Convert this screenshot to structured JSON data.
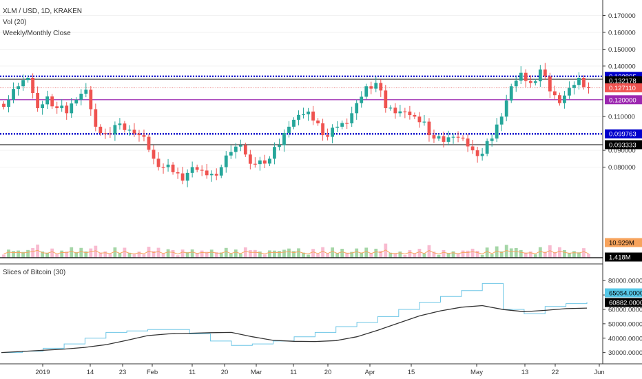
{
  "header": {
    "symbol_line": "XLM / USD, 1D, KRAKEN",
    "vol_label": "Vol (20)",
    "close_label": "Weekly/Monthly Close",
    "pane2_label": "Slices of Bitcoin (30)"
  },
  "colors": {
    "up": "#26a69a",
    "down": "#ef5350",
    "vol_up": "#a5d6a7",
    "vol_down": "#f8bbd0",
    "vol_ma": "#f7a35c",
    "blue_dotted": "#0000cc",
    "purple": "#9c27b0",
    "red_dotted": "#e57373",
    "bitcoin_line": "#6ec6e6",
    "bitcoin_ma": "#333333"
  },
  "chart_data": [
    {
      "type": "candlestick",
      "title": "XLM / USD, 1D, KRAKEN",
      "x_tick_labels": [
        "2019",
        "14",
        "23",
        "Feb",
        "11",
        "20",
        "Mar",
        "11",
        "20",
        "Apr",
        "15",
        "May",
        "13",
        "22",
        "Jun"
      ],
      "y_tick_labels": [
        "0.080000",
        "0.090000",
        "0.110000",
        "0.140000",
        "0.150000",
        "0.160000",
        "0.170000"
      ],
      "ylim": [
        0.0655,
        0.1735
      ],
      "close_series_approx": [
        0.12,
        0.128,
        0.133,
        0.115,
        0.122,
        0.115,
        0.112,
        0.12,
        0.126,
        0.104,
        0.1,
        0.105,
        0.102,
        0.1,
        0.098,
        0.085,
        0.08,
        0.077,
        0.072,
        0.08,
        0.078,
        0.076,
        0.08,
        0.089,
        0.093,
        0.082,
        0.084,
        0.085,
        0.093,
        0.104,
        0.111,
        0.113,
        0.106,
        0.098,
        0.104,
        0.106,
        0.118,
        0.128,
        0.13,
        0.115,
        0.112,
        0.113,
        0.11,
        0.107,
        0.097,
        0.095,
        0.098,
        0.097,
        0.09,
        0.088,
        0.097,
        0.11,
        0.128,
        0.136,
        0.13,
        0.138,
        0.125,
        0.118,
        0.127,
        0.133,
        0.127
      ],
      "price_tags": [
        {
          "value": "0.133895",
          "style": "blue"
        },
        {
          "value": "0.132178",
          "style": "black"
        },
        {
          "value": "0.127110",
          "style": "red"
        },
        {
          "value": "0.120000",
          "style": "purple"
        },
        {
          "value": "0.099763",
          "style": "blue"
        },
        {
          "value": "0.093333",
          "style": "black"
        }
      ],
      "horizontal_levels": [
        {
          "value": 0.133895,
          "style": "blue-dotted"
        },
        {
          "value": 0.132178,
          "style": "black"
        },
        {
          "value": 0.12711,
          "style": "red-dotted"
        },
        {
          "value": 0.12,
          "style": "purple"
        },
        {
          "value": 0.099763,
          "style": "blue-dotted"
        },
        {
          "value": 0.093333,
          "style": "black"
        }
      ],
      "volume": {
        "tags": [
          {
            "value": "10.929M",
            "style": "orange"
          },
          {
            "value": "1.418M",
            "style": "black"
          }
        ]
      }
    },
    {
      "type": "line",
      "title": "Slices of Bitcoin (30)",
      "y_tick_labels": [
        "30000.000000",
        "40000.000000",
        "50000.000000",
        "60000.000000",
        "70000.000000",
        "80000.000000"
      ],
      "ylim": [
        26000,
        82000
      ],
      "series": [
        {
          "values": [
            30000,
            31000,
            33000,
            36000,
            40000,
            44000,
            45000,
            46000,
            46000,
            43000,
            38000,
            35000,
            36000,
            38000,
            41000,
            44000,
            48000,
            51000,
            55000,
            60000,
            65000,
            69000,
            73000,
            78000,
            60000,
            57000,
            62000,
            64000,
            65000
          ]
        },
        {
          "values": [
            30000,
            30800,
            31600,
            32400,
            33600,
            35500,
            38500,
            41800,
            43000,
            43400,
            43800,
            44000,
            41000,
            38500,
            37800,
            37700,
            38300,
            41000,
            45500,
            50500,
            55500,
            59000,
            61500,
            62600,
            59900,
            58400,
            59300,
            60500,
            60900
          ]
        }
      ],
      "tags": [
        {
          "value": "65054.000000",
          "style": "cyan"
        },
        {
          "value": "60882.000000",
          "style": "black"
        }
      ]
    }
  ]
}
